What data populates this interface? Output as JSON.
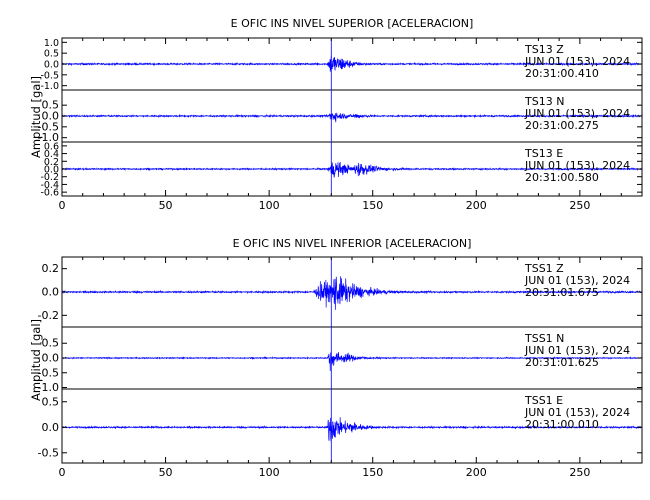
{
  "chart_data": [
    {
      "type": "line",
      "title": "E OFIC INS NIVEL SUPERIOR [ACELERACION]",
      "ylabel": "Amplitud [gal]",
      "xlabel": "",
      "xlim": [
        0,
        280
      ],
      "xticks": [
        0,
        50,
        100,
        150,
        200,
        250
      ],
      "trace_color": "#0000FF",
      "panels": [
        {
          "station": "TS13   Z",
          "date": "JUN 01 (153), 2024",
          "time": "20:31:00.410",
          "ylim": [
            -1.2,
            1.2
          ],
          "yticks": [
            "1.0",
            "0.5",
            "0.0",
            "-0.5",
            "-1.0"
          ],
          "ytick_values": [
            1.0,
            0.5,
            0.0,
            -0.5,
            -1.0
          ],
          "noise_amp": 0.06,
          "events": [
            {
              "onset": 128,
              "peak": 1.0,
              "rise": 2,
              "decay": 6
            },
            {
              "onset": 133,
              "peak": 0.45,
              "rise": 2,
              "decay": 5
            }
          ]
        },
        {
          "station": "TS13   N",
          "date": "JUN 01 (153), 2024",
          "time": "20:31:00.275",
          "ylim": [
            -1.2,
            1.2
          ],
          "yticks": [
            "0.5",
            "0.0",
            "-0.5",
            "-1.0"
          ],
          "ytick_values": [
            0.5,
            0.0,
            -0.5,
            -1.0
          ],
          "noise_amp": 0.06,
          "events": [
            {
              "onset": 128,
              "peak": 0.55,
              "rise": 2,
              "decay": 6
            },
            {
              "onset": 140,
              "peak": 0.25,
              "rise": 2,
              "decay": 4
            }
          ]
        },
        {
          "station": "TS13   E",
          "date": "JUN 01 (153), 2024",
          "time": "20:31:00.580",
          "ylim": [
            -0.7,
            0.7
          ],
          "yticks": [
            "0.6",
            "0.4",
            "0.2",
            "0.0",
            "-0.2",
            "-0.4",
            "-0.6"
          ],
          "ytick_values": [
            0.6,
            0.4,
            0.2,
            0.0,
            -0.2,
            -0.4,
            -0.6
          ],
          "noise_amp": 0.03,
          "events": [
            {
              "onset": 128,
              "peak": 0.45,
              "rise": 3,
              "decay": 8
            },
            {
              "onset": 140,
              "peak": 0.35,
              "rise": 3,
              "decay": 8
            }
          ]
        }
      ]
    },
    {
      "type": "line",
      "title": "E OFIC INS NIVEL INFERIOR [ACELERACION]",
      "ylabel": "Amplitud [gal]",
      "xlabel": "",
      "xlim": [
        0,
        280
      ],
      "xticks": [
        0,
        50,
        100,
        150,
        200,
        250
      ],
      "trace_color": "#0000FF",
      "panels": [
        {
          "station": "TSS1   Z",
          "date": "JUN 01 (153), 2024",
          "time": "20:31:01.675",
          "ylim": [
            -0.3,
            0.3
          ],
          "yticks": [
            "0.2",
            "0.0",
            "-0.2"
          ],
          "ytick_values": [
            0.2,
            0.0,
            -0.2
          ],
          "noise_amp": 0.012,
          "events": [
            {
              "onset": 121,
              "peak": 0.18,
              "rise": 5,
              "decay": 12
            },
            {
              "onset": 130,
              "peak": 0.28,
              "rise": 1,
              "decay": 10
            }
          ]
        },
        {
          "station": "TSS1   N",
          "date": "JUN 01 (153), 2024",
          "time": "20:31:01.625",
          "ylim": [
            -1.05,
            1.05
          ],
          "yticks": [
            "0.5",
            "0.0",
            "-0.5",
            "-1.0"
          ],
          "ytick_values": [
            0.5,
            0.0,
            -0.5,
            -1.0
          ],
          "noise_amp": 0.03,
          "events": [
            {
              "onset": 128,
              "peak": 0.7,
              "rise": 1,
              "decay": 6
            },
            {
              "onset": 135,
              "peak": 0.25,
              "rise": 2,
              "decay": 6
            }
          ]
        },
        {
          "station": "TSS1   E",
          "date": "JUN 01 (153), 2024",
          "time": "20:31:00.010",
          "ylim": [
            -0.7,
            0.75
          ],
          "yticks": [
            "0.5",
            "0.0",
            "-0.5"
          ],
          "ytick_values": [
            0.5,
            0.0,
            -0.5
          ],
          "noise_amp": 0.025,
          "events": [
            {
              "onset": 128,
              "peak": 0.65,
              "rise": 1,
              "decay": 6
            },
            {
              "onset": 136,
              "peak": 0.25,
              "rise": 2,
              "decay": 6
            }
          ]
        }
      ]
    }
  ]
}
